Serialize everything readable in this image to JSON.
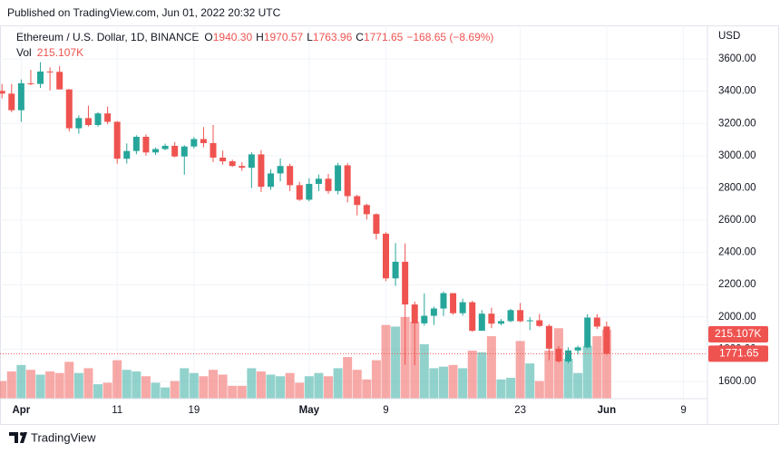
{
  "header": "Published on TradingView.com, Jun 01, 2022 20:32 UTC",
  "footer": "TradingView",
  "chart_data": {
    "type": "candlestick",
    "title": "Ethereum / U.S. Dollar, 1D, BINANCE",
    "ohlc": [
      {
        "key": "O",
        "value": "1940.30"
      },
      {
        "key": "H",
        "value": "1970.57"
      },
      {
        "key": "L",
        "value": "1763.96"
      },
      {
        "key": "C",
        "value": "1771.65"
      }
    ],
    "change": "−168.65 (−8.69%)",
    "volume_title": "Vol",
    "volume_label": "215.107K",
    "price_label": "1771.65",
    "axis_label": "USD",
    "up_color": "#26a69a",
    "down_color": "#ef5350",
    "grid": true,
    "x": [
      "2022-03-30",
      "2022-03-31",
      "2022-04-01",
      "2022-04-02",
      "2022-04-03",
      "2022-04-04",
      "2022-04-05",
      "2022-04-06",
      "2022-04-07",
      "2022-04-08",
      "2022-04-09",
      "2022-04-10",
      "2022-04-11",
      "2022-04-12",
      "2022-04-13",
      "2022-04-14",
      "2022-04-15",
      "2022-04-16",
      "2022-04-17",
      "2022-04-18",
      "2022-04-19",
      "2022-04-20",
      "2022-04-21",
      "2022-04-22",
      "2022-04-23",
      "2022-04-24",
      "2022-04-25",
      "2022-04-26",
      "2022-04-27",
      "2022-04-28",
      "2022-04-29",
      "2022-04-30",
      "2022-05-01",
      "2022-05-02",
      "2022-05-03",
      "2022-05-04",
      "2022-05-05",
      "2022-05-06",
      "2022-05-07",
      "2022-05-08",
      "2022-05-09",
      "2022-05-10",
      "2022-05-11",
      "2022-05-12",
      "2022-05-13",
      "2022-05-14",
      "2022-05-15",
      "2022-05-16",
      "2022-05-17",
      "2022-05-18",
      "2022-05-19",
      "2022-05-20",
      "2022-05-21",
      "2022-05-22",
      "2022-05-23",
      "2022-05-24",
      "2022-05-25",
      "2022-05-26",
      "2022-05-27",
      "2022-05-28",
      "2022-05-29",
      "2022-05-30",
      "2022-05-31",
      "2022-06-01"
    ],
    "open": [
      3402,
      3385,
      3282,
      3449,
      3445,
      3522,
      3520,
      3411,
      3170,
      3233,
      3190,
      3262,
      3210,
      2981,
      3029,
      3117,
      3020,
      3041,
      3061,
      2995,
      3057,
      3103,
      3078,
      2988,
      2965,
      2936,
      2925,
      3008,
      2807,
      2890,
      2936,
      2817,
      2727,
      2825,
      2857,
      2781,
      2940,
      2749,
      2694,
      2637,
      2516,
      2239,
      2342,
      2077,
      1960,
      2007,
      2052,
      2147,
      2023,
      2091,
      1914,
      2020,
      1958,
      1974,
      2042,
      1973,
      1979,
      1944,
      1803,
      1724,
      1792,
      1811,
      1996,
      1940.3
    ],
    "high": [
      3445,
      3445,
      3473,
      3532,
      3580,
      3548,
      3555,
      3413,
      3250,
      3310,
      3270,
      3305,
      3215,
      3076,
      3127,
      3132,
      3050,
      3075,
      3085,
      3065,
      3116,
      3177,
      3190,
      3031,
      2975,
      2960,
      3021,
      3035,
      2915,
      2983,
      2950,
      2838,
      2860,
      2883,
      2887,
      2955,
      2953,
      2758,
      2702,
      2642,
      2525,
      2458,
      2455,
      2095,
      2146,
      2064,
      2158,
      2148,
      2113,
      2100,
      2042,
      2057,
      1987,
      2050,
      2086,
      1999,
      2018,
      1954,
      1820,
      1811,
      1822,
      2017,
      2018,
      1970.57
    ],
    "low": [
      3356,
      3270,
      3210,
      3437,
      3420,
      3405,
      3410,
      3150,
      3136,
      3180,
      3180,
      3195,
      2950,
      2951,
      3009,
      3000,
      3005,
      3034,
      2990,
      2882,
      3045,
      3052,
      2960,
      2945,
      2930,
      2906,
      2800,
      2775,
      2788,
      2840,
      2780,
      2720,
      2717,
      2780,
      2764,
      2760,
      2710,
      2630,
      2604,
      2480,
      2222,
      2192,
      1704,
      1700,
      1946,
      1950,
      2006,
      2013,
      2008,
      1907,
      1915,
      1930,
      1948,
      1967,
      1967,
      1918,
      1938,
      1730,
      1715,
      1712,
      1766,
      1803,
      1925,
      1763.96
    ],
    "close": [
      3385,
      3282,
      3449,
      3445,
      3522,
      3520,
      3411,
      3170,
      3233,
      3190,
      3262,
      3210,
      2981,
      3029,
      3117,
      3020,
      3041,
      3061,
      2995,
      3057,
      3103,
      3078,
      2988,
      2965,
      2936,
      2925,
      3008,
      2807,
      2890,
      2936,
      2817,
      2727,
      2825,
      2857,
      2781,
      2940,
      2749,
      2694,
      2637,
      2516,
      2239,
      2342,
      2077,
      1960,
      2007,
      2052,
      2147,
      2023,
      2091,
      1914,
      2020,
      1958,
      1974,
      2042,
      1973,
      1979,
      1944,
      1803,
      1724,
      1792,
      1811,
      1996,
      1940,
      1771.65
    ],
    "volume": [
      55,
      85,
      105,
      90,
      75,
      85,
      80,
      115,
      80,
      95,
      45,
      50,
      120,
      90,
      85,
      70,
      50,
      35,
      55,
      95,
      80,
      70,
      90,
      75,
      40,
      40,
      95,
      85,
      75,
      70,
      80,
      50,
      70,
      80,
      70,
      95,
      130,
      90,
      60,
      120,
      230,
      225,
      255,
      240,
      170,
      95,
      100,
      105,
      95,
      150,
      145,
      195,
      60,
      65,
      180,
      110,
      55,
      150,
      220,
      125,
      80,
      165,
      195,
      215.107
    ],
    "ylim": [
      1493,
      3797
    ],
    "volume_ylim": [
      0,
      1160
    ],
    "xlim": [
      "2022-03-29T19:00Z",
      "2022-06-11T12:00Z"
    ],
    "yticks": [
      {
        "value": 1600,
        "label": "1600.00"
      },
      {
        "value": 1800,
        "label": "1800.00"
      },
      {
        "value": 2000,
        "label": "2000.00"
      },
      {
        "value": 2200,
        "label": "2200.00"
      },
      {
        "value": 2400,
        "label": "2400.00"
      },
      {
        "value": 2600,
        "label": "2600.00"
      },
      {
        "value": 2800,
        "label": "2800.00"
      },
      {
        "value": 3000,
        "label": "3000.00"
      },
      {
        "value": 3200,
        "label": "3200.00"
      },
      {
        "value": 3400,
        "label": "3400.00"
      },
      {
        "value": 3600,
        "label": "3600.00"
      }
    ],
    "xticks": [
      {
        "value": "2022-04-01",
        "label": "Apr"
      },
      {
        "value": "2022-04-11",
        "label": "11"
      },
      {
        "value": "2022-04-19",
        "label": "19"
      },
      {
        "value": "2022-05-01",
        "label": "May"
      },
      {
        "value": "2022-05-09",
        "label": "9"
      },
      {
        "value": "2022-05-23",
        "label": "23"
      },
      {
        "value": "2022-06-01",
        "label": "Jun"
      },
      {
        "value": "2022-06-09",
        "label": "9"
      }
    ]
  }
}
